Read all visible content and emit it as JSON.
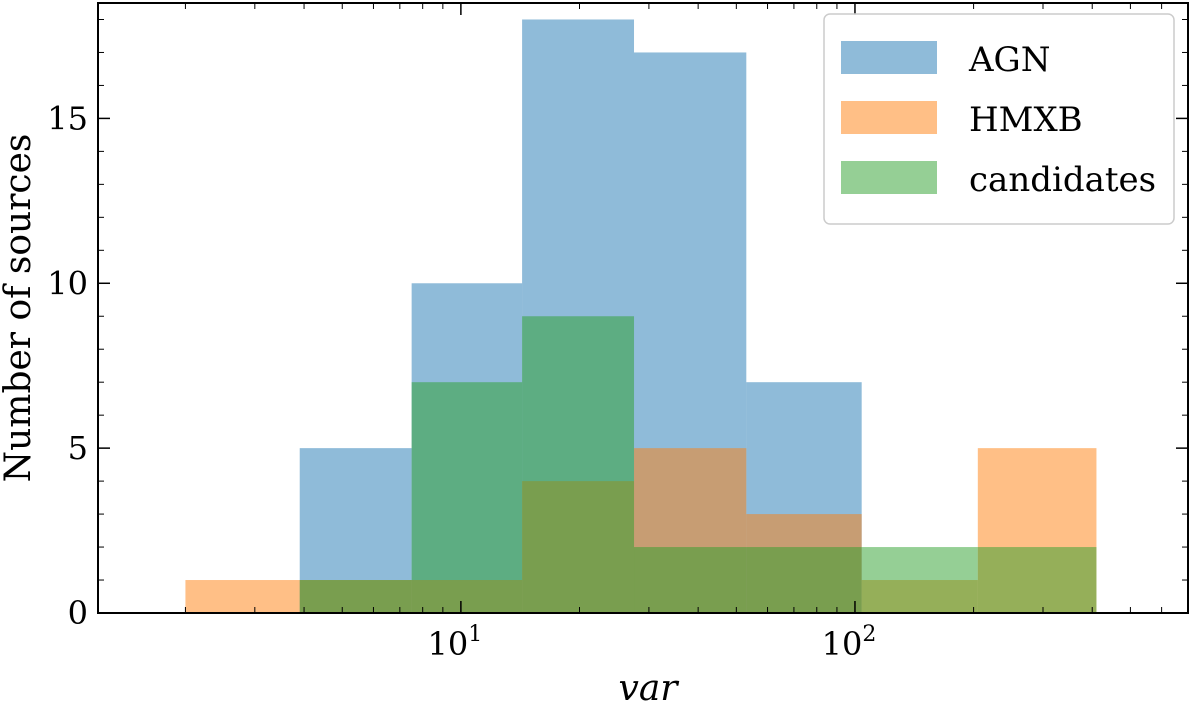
{
  "chart_data": {
    "type": "bar",
    "xscale": "log",
    "xlabel": "var",
    "ylabel": "Number of sources",
    "xlim": [
      1.2,
      700
    ],
    "ylim": [
      0,
      18.5
    ],
    "grid": false,
    "legend_position": "top-right",
    "x_tick_labels": [
      {
        "value": 10,
        "base": "10",
        "exp": "1"
      },
      {
        "value": 100,
        "base": "10",
        "exp": "2"
      }
    ],
    "y_ticks": [
      0,
      5,
      10,
      15
    ],
    "bin_edges": [
      2,
      3.9,
      7.5,
      14.3,
      27.5,
      53,
      104,
      205,
      410
    ],
    "series": [
      {
        "name": "AGN",
        "color": "#1f77b4",
        "opacity": 0.5,
        "counts": [
          0,
          5,
          10,
          18,
          17,
          7,
          0,
          0
        ]
      },
      {
        "name": "HMXB",
        "color": "#ff7f0e",
        "opacity": 0.5,
        "counts": [
          1,
          1,
          1,
          4,
          5,
          3,
          1,
          5
        ]
      },
      {
        "name": "candidates",
        "color": "#2ca02c",
        "opacity": 0.5,
        "counts": [
          0,
          1,
          7,
          9,
          2,
          2,
          2,
          2
        ]
      }
    ]
  }
}
